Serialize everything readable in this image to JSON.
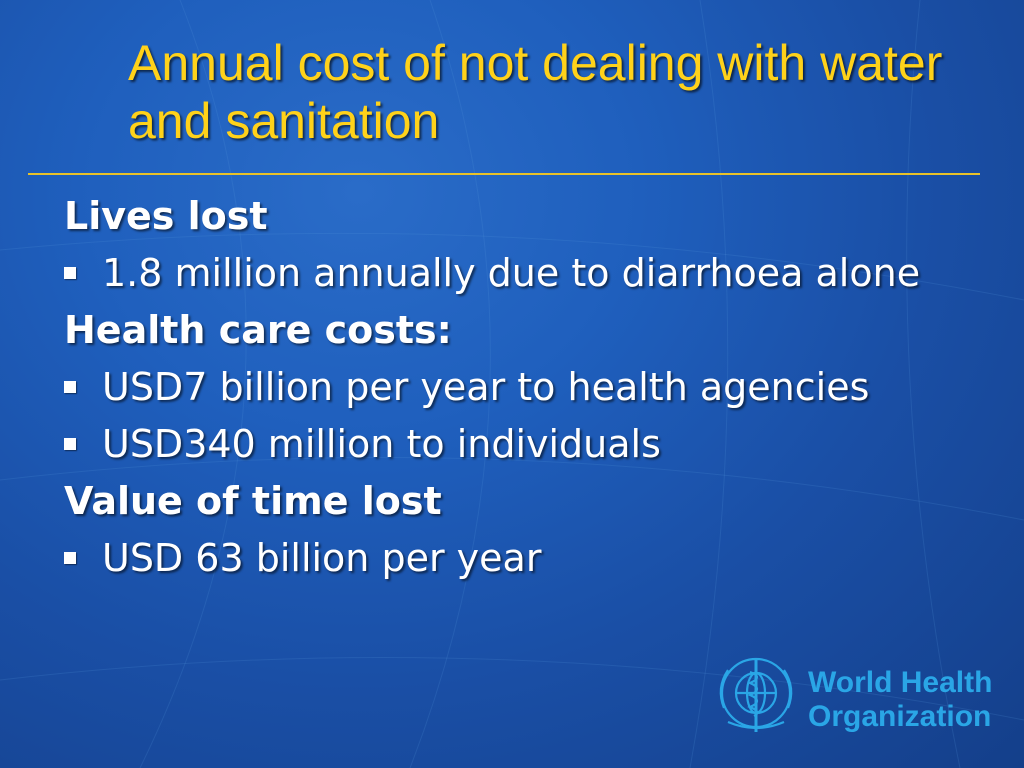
{
  "slide": {
    "title": "Annual cost of not dealing with water and sanitation",
    "sections": [
      {
        "heading": "Lives lost",
        "bullets": [
          "1.8 million annually due to diarrhoea alone"
        ]
      },
      {
        "heading": "Health care costs:",
        "bullets": [
          "USD7 billion per year to health agencies",
          "USD340 million to individuals"
        ]
      },
      {
        "heading": "Value of time lost",
        "bullets": [
          "USD 63 billion per year"
        ]
      }
    ]
  },
  "logo": {
    "line1": "World Health",
    "line2": "Organization",
    "icon": "who-emblem-icon"
  },
  "colors": {
    "title": "#ffd21a",
    "rule": "#e8c22a",
    "text": "#ffffff",
    "logo": "#2aa6e6",
    "background": "#1f5fbd"
  }
}
